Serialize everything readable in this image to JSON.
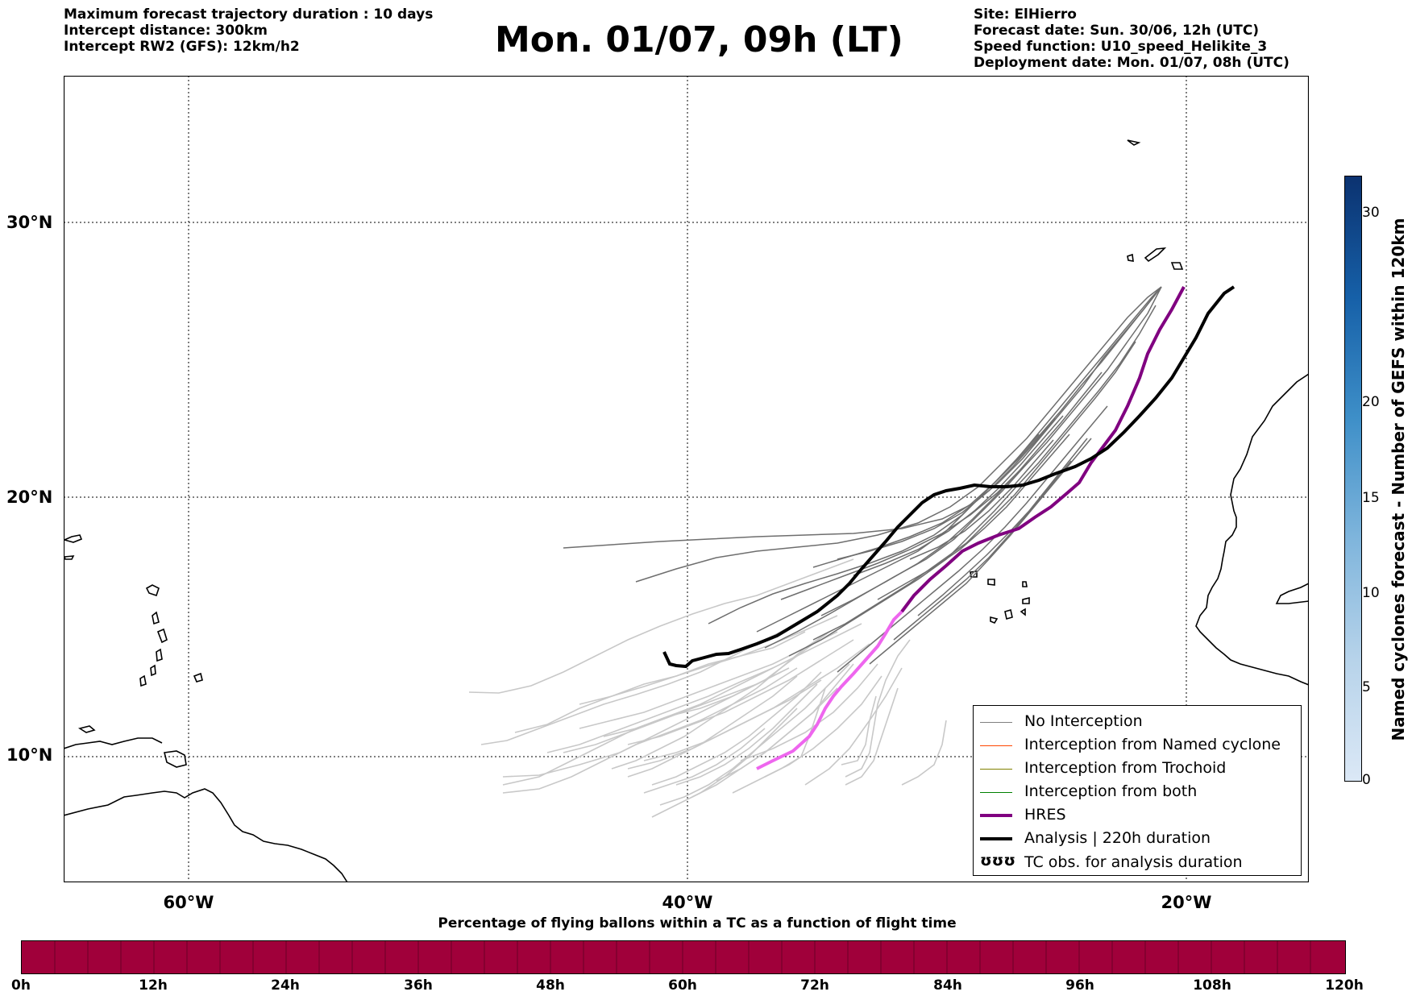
{
  "header": {
    "left_lines": [
      "Maximum forecast trajectory duration : 10 days",
      "Intercept distance: 300km",
      "Intercept RW2 (GFS):  12km/h2"
    ],
    "title": "Mon. 01/07, 09h (LT)",
    "right_lines": [
      "Site: ElHierro",
      "Forecast date: Sun. 30/06, 12h (UTC)",
      "Speed function: U10_speed_Helikite_3",
      "Deployment date: Mon. 01/07, 08h (UTC)"
    ]
  },
  "map": {
    "lat_labels": [
      "30°N",
      "20°N",
      "10°N"
    ],
    "lon_labels": [
      "60°W",
      "40°W",
      "20°W"
    ]
  },
  "legend": {
    "items": [
      {
        "label": "No Interception",
        "color": "#808080"
      },
      {
        "label": "Interception from Named cyclone",
        "color": "#ff4500"
      },
      {
        "label": "Interception from Trochoid",
        "color": "#808000"
      },
      {
        "label": "Interception from both",
        "color": "#008000"
      },
      {
        "label": "HRES",
        "color": "#800080"
      },
      {
        "label": "Analysis | 220h duration",
        "color": "#000000"
      },
      {
        "label": "TC obs. for analysis duration",
        "symbol": "ʊʊʊ"
      }
    ]
  },
  "colorbar_vertical": {
    "label": "Named cyclones forecast - Number of GEFS within 120km",
    "ticks": [
      "0",
      "5",
      "10",
      "15",
      "20",
      "30"
    ]
  },
  "colorbar_horizontal": {
    "title": "Percentage of flying ballons within a TC as a function of flight time",
    "ticks": [
      "0h",
      "12h",
      "24h",
      "36h",
      "48h",
      "60h",
      "72h",
      "84h",
      "96h",
      "108h",
      "120h"
    ],
    "fill_color": "#a0003a"
  }
}
